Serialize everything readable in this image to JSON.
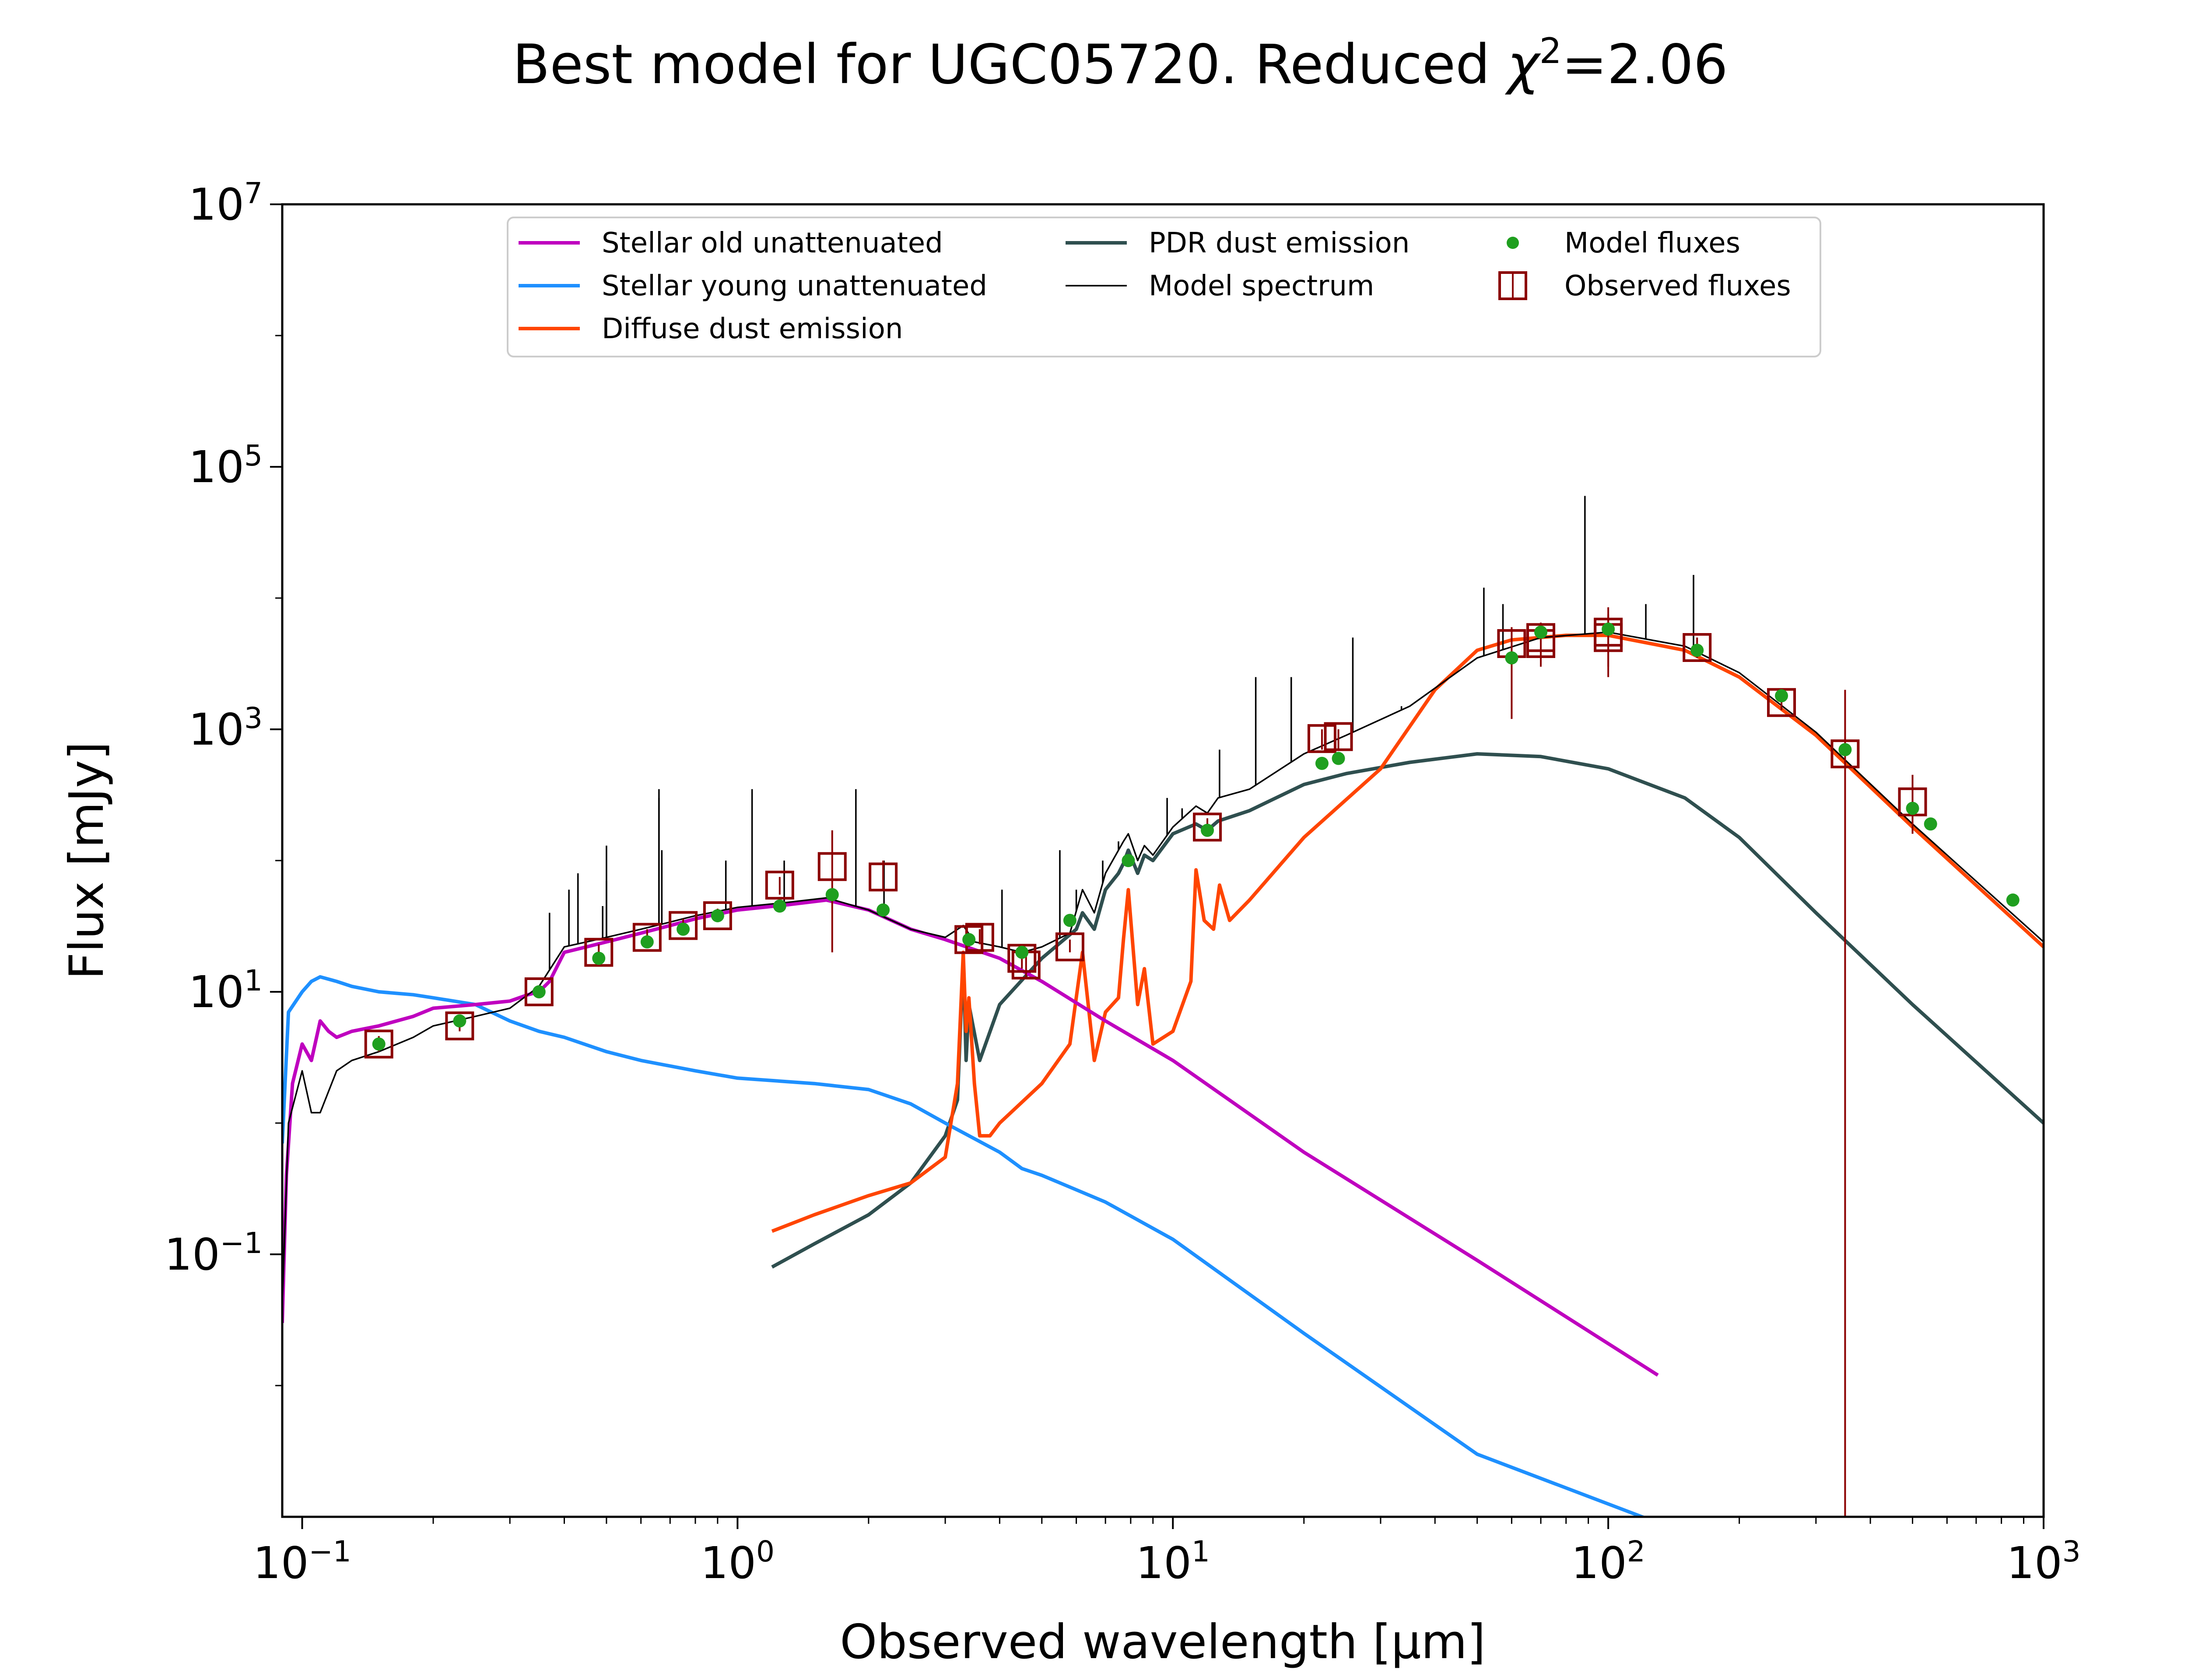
{
  "figure": {
    "title": "Best model for UGC05720. Reduced χ²=2.06",
    "colors": {
      "stellar_old": "#bf00bf",
      "stellar_young": "#1e90ff",
      "diffuse_dust": "#ff4500",
      "pdr_dust": "#2f4f4f",
      "model_spectrum": "#000000",
      "model_fluxes": "#1f9f1f",
      "observed_fluxes": "#8b0000"
    }
  },
  "chart_data": {
    "type": "line",
    "title": "Best model for UGC05720. Reduced χ²=2.06",
    "xlabel": "Observed wavelength [μm]",
    "ylabel": "Flux [mJy]",
    "xscale": "log",
    "yscale": "log",
    "xlim": [
      0.09,
      1000
    ],
    "ylim": [
      0.001,
      10000000
    ],
    "xticks": [
      {
        "base": "10",
        "exp": "−1",
        "value": 0.1
      },
      {
        "base": "10",
        "exp": "0",
        "value": 1
      },
      {
        "base": "10",
        "exp": "1",
        "value": 10
      },
      {
        "base": "10",
        "exp": "2",
        "value": 100
      },
      {
        "base": "10",
        "exp": "3",
        "value": 1000
      }
    ],
    "yticks": [
      {
        "base": "10",
        "exp": "−1",
        "value": 0.1
      },
      {
        "base": "10",
        "exp": "1",
        "value": 10
      },
      {
        "base": "10",
        "exp": "3",
        "value": 1000
      },
      {
        "base": "10",
        "exp": "5",
        "value": 100000
      },
      {
        "base": "10",
        "exp": "7",
        "value": 10000000
      }
    ],
    "grid": false,
    "legend_position": "top-center",
    "legend": [
      {
        "label": "Stellar old unattenuated",
        "key": "stellar_old",
        "marker": "line"
      },
      {
        "label": "Stellar young unattenuated",
        "key": "stellar_young",
        "marker": "line"
      },
      {
        "label": "Diffuse dust emission",
        "key": "diffuse_dust",
        "marker": "line"
      },
      {
        "label": "PDR dust emission",
        "key": "pdr_dust",
        "marker": "line"
      },
      {
        "label": "Model spectrum",
        "key": "model_spectrum",
        "marker": "thinline"
      },
      {
        "label": "Model fluxes",
        "key": "model_fluxes",
        "marker": "dot"
      },
      {
        "label": "Observed fluxes",
        "key": "observed_fluxes",
        "marker": "box"
      }
    ],
    "series": [
      {
        "key": "stellar_old",
        "x": [
          0.09,
          0.092,
          0.095,
          0.1,
          0.105,
          0.11,
          0.115,
          0.12,
          0.13,
          0.15,
          0.18,
          0.2,
          0.25,
          0.3,
          0.33,
          0.35,
          0.37,
          0.4,
          0.45,
          0.5,
          0.6,
          0.7,
          0.8,
          1.0,
          1.3,
          1.6,
          2.0,
          2.5,
          3.0,
          4.0,
          5.0,
          7.0,
          10,
          20,
          50,
          130
        ],
        "y": [
          0.03,
          0.4,
          2,
          4,
          3,
          6,
          5,
          4.5,
          5,
          5.5,
          6.5,
          7.5,
          8,
          8.5,
          9.5,
          10,
          12,
          20,
          22,
          24,
          28,
          32,
          36,
          42,
          46,
          50,
          42,
          30,
          25,
          18,
          12,
          6,
          3,
          0.6,
          0.09,
          0.012
        ]
      },
      {
        "key": "stellar_young",
        "x": [
          0.09,
          0.093,
          0.1,
          0.105,
          0.11,
          0.12,
          0.13,
          0.15,
          0.18,
          0.2,
          0.25,
          0.3,
          0.35,
          0.4,
          0.5,
          0.6,
          0.8,
          1.0,
          1.5,
          2.0,
          2.5,
          3.0,
          4.0,
          4.5,
          5.0,
          7.0,
          10,
          20,
          50,
          130
        ],
        "y": [
          0.7,
          7,
          10,
          12,
          13,
          12,
          11,
          10,
          9.5,
          9,
          8,
          6,
          5,
          4.5,
          3.5,
          3,
          2.5,
          2.2,
          2.0,
          1.8,
          1.4,
          1.0,
          0.6,
          0.45,
          0.4,
          0.25,
          0.13,
          0.025,
          0.003,
          0.0009
        ]
      },
      {
        "key": "diffuse_dust",
        "x": [
          1.2,
          1.5,
          2.0,
          2.5,
          3.0,
          3.2,
          3.3,
          3.35,
          3.4,
          3.5,
          3.6,
          3.8,
          4.0,
          5.0,
          5.8,
          6.2,
          6.6,
          7.0,
          7.5,
          7.7,
          7.9,
          8.3,
          8.6,
          9.0,
          10.0,
          11.0,
          11.3,
          11.8,
          12.4,
          12.8,
          13.5,
          15,
          20,
          30,
          40,
          50,
          60,
          80,
          100,
          150,
          200,
          300,
          500,
          1000
        ],
        "y": [
          0.15,
          0.2,
          0.28,
          0.35,
          0.55,
          2,
          20,
          5,
          9,
          2,
          0.8,
          0.8,
          1.0,
          2.0,
          4,
          20,
          3,
          7,
          9,
          25,
          60,
          8,
          15,
          4,
          5,
          12,
          85,
          35,
          30,
          65,
          35,
          50,
          150,
          500,
          2000,
          4000,
          4800,
          5200,
          5200,
          4000,
          2500,
          900,
          180,
          22
        ]
      },
      {
        "key": "pdr_dust",
        "x": [
          1.2,
          1.5,
          2.0,
          2.5,
          3.0,
          3.2,
          3.3,
          3.35,
          3.4,
          3.6,
          4.0,
          5.0,
          6.0,
          6.2,
          6.6,
          7.0,
          7.5,
          7.7,
          7.9,
          8.3,
          8.6,
          9.0,
          10,
          11.3,
          12.0,
          12.7,
          15,
          20,
          25,
          35,
          50,
          70,
          100,
          150,
          200,
          300,
          500,
          1000
        ],
        "y": [
          0.08,
          0.12,
          0.2,
          0.35,
          0.8,
          1.5,
          18,
          3,
          8,
          3,
          8,
          18,
          30,
          40,
          30,
          60,
          80,
          95,
          120,
          80,
          110,
          100,
          160,
          190,
          170,
          200,
          240,
          380,
          460,
          560,
          650,
          620,
          500,
          300,
          150,
          40,
          8,
          1.0
        ]
      },
      {
        "key": "model_spectrum",
        "x": [
          0.09,
          0.093,
          0.1,
          0.105,
          0.11,
          0.12,
          0.13,
          0.15,
          0.18,
          0.2,
          0.25,
          0.3,
          0.35,
          0.4,
          0.45,
          0.5,
          0.6,
          0.7,
          0.8,
          1.0,
          1.3,
          1.6,
          2.0,
          2.5,
          3.0,
          3.3,
          3.5,
          4.0,
          4.5,
          5.0,
          5.8,
          6.2,
          6.6,
          7.0,
          7.7,
          7.9,
          8.3,
          8.6,
          9.0,
          10,
          11.3,
          12.0,
          12.7,
          15,
          20,
          25,
          35,
          50,
          70,
          100,
          150,
          200,
          300,
          500,
          1000
        ],
        "y": [
          0.04,
          1.0,
          2.5,
          1.2,
          1.2,
          2.5,
          3,
          3.5,
          4.5,
          5.5,
          6.5,
          7.5,
          11,
          22,
          24,
          26,
          30,
          34,
          38,
          44,
          48,
          52,
          42,
          30,
          26,
          32,
          24,
          22,
          20,
          22,
          28,
          60,
          40,
          80,
          140,
          160,
          100,
          130,
          110,
          180,
          260,
          230,
          300,
          350,
          650,
          900,
          1500,
          3500,
          5000,
          5500,
          4300,
          2700,
          950,
          190,
          24
        ]
      },
      {
        "key": "emission_lines",
        "x": [
          0.37,
          0.41,
          0.43,
          0.49,
          0.5,
          0.5,
          0.66,
          0.66,
          0.67,
          0.94,
          1.08,
          1.28,
          1.87,
          2.17,
          4.05,
          5.5,
          6.0,
          6.9,
          7.5,
          9.7,
          10.5,
          12.8,
          15.5,
          18.7,
          25.9,
          33.5,
          34.8,
          51.8,
          57.3,
          88.4,
          122,
          157
        ],
        "y": [
          40,
          60,
          80,
          45,
          70,
          130,
          300,
          350,
          120,
          100,
          350,
          100,
          350,
          100,
          60,
          120,
          60,
          100,
          140,
          300,
          250,
          700,
          2500,
          2500,
          5000,
          1500,
          1500,
          12000,
          9000,
          60000,
          9000,
          15000
        ]
      }
    ],
    "model_fluxes": {
      "x": [
        0.15,
        0.23,
        0.35,
        0.48,
        0.62,
        0.75,
        0.9,
        1.25,
        1.65,
        2.16,
        3.4,
        4.5,
        5.8,
        7.9,
        12,
        22,
        24,
        60,
        70,
        100,
        160,
        250,
        350,
        500,
        550,
        850
      ],
      "y": [
        4,
        6,
        10,
        18,
        24,
        30,
        38,
        45,
        55,
        42,
        25,
        20,
        35,
        100,
        170,
        550,
        600,
        3500,
        5500,
        5800,
        4000,
        1800,
        700,
        250,
        190,
        50
      ]
    },
    "observed_fluxes": {
      "x": [
        0.15,
        0.23,
        0.35,
        0.48,
        0.62,
        0.75,
        0.9,
        1.25,
        1.65,
        2.16,
        3.4,
        3.6,
        4.5,
        4.6,
        5.8,
        12,
        22,
        24,
        60,
        70,
        70,
        100,
        100,
        160,
        250,
        350,
        500
      ],
      "y": [
        4,
        5.5,
        10,
        20,
        26,
        32,
        38,
        65,
        90,
        75,
        25,
        26,
        18,
        16,
        22,
        180,
        850,
        880,
        4500,
        4500,
        5000,
        5000,
        5500,
        4200,
        1600,
        650,
        280
      ],
      "err_low": [
        3.5,
        5,
        9,
        18,
        23,
        29,
        34,
        55,
        20,
        60,
        22,
        23,
        15,
        13,
        20,
        160,
        700,
        700,
        1200,
        3000,
        3500,
        2500,
        3000,
        3500,
        1400,
        0.001,
        160
      ],
      "err_high": [
        4.6,
        6.2,
        11,
        23,
        30,
        36,
        43,
        75,
        170,
        100,
        28,
        30,
        23,
        20,
        25,
        210,
        1000,
        1000,
        6000,
        6000,
        6500,
        7500,
        8500,
        5000,
        1900,
        2000,
        450
      ]
    }
  }
}
